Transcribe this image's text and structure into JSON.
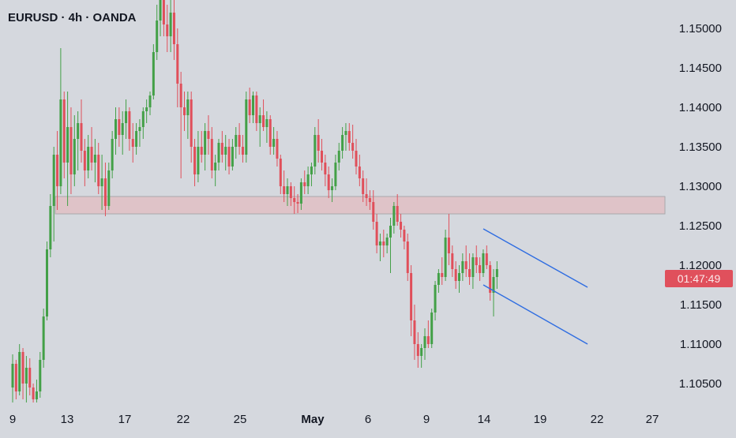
{
  "title": "EURUSD · 4h · OANDA",
  "price_badge": "01:47:49",
  "colors": {
    "background": "#d5d8de",
    "up": "#43a047",
    "down": "#e04f5a",
    "zone_fill": "#dfc3c8",
    "zone_border": "#a8a8ac",
    "channel": "#2f6de1",
    "badge": "#e0505c",
    "text": "#131722"
  },
  "chart_data": {
    "type": "candlestick",
    "symbol": "EURUSD",
    "interval": "4h",
    "source": "OANDA",
    "y_ticks": [
      "1.15000",
      "1.14500",
      "1.14000",
      "1.13500",
      "1.13000",
      "1.12500",
      "1.12000",
      "1.11500",
      "1.11000",
      "1.10500"
    ],
    "x_ticks": [
      "9",
      "13",
      "17",
      "22",
      "25",
      "May",
      "6",
      "9",
      "14",
      "19",
      "22",
      "27"
    ],
    "ylim": [
      1.1025,
      1.1525
    ],
    "grid": false,
    "resistance_zone": [
      1.1265,
      1.1287
    ],
    "channel": {
      "upper": [
        [
          "May 14",
          1.1246
        ],
        [
          "May 21",
          1.1172
        ]
      ],
      "lower": [
        [
          "May 14",
          1.1175
        ],
        [
          "May 21",
          1.11
        ]
      ]
    },
    "candles": [
      [
        1.1045,
        1.1087,
        1.1026,
        1.1075
      ],
      [
        1.1075,
        1.108,
        1.103,
        1.104
      ],
      [
        1.104,
        1.11,
        1.1035,
        1.109
      ],
      [
        1.109,
        1.1095,
        1.103,
        1.105
      ],
      [
        1.105,
        1.1085,
        1.1026,
        1.107
      ],
      [
        1.107,
        1.1082,
        1.1035,
        1.1045
      ],
      [
        1.1045,
        1.105,
        1.1026,
        1.103
      ],
      [
        1.103,
        1.1055,
        1.1026,
        1.104
      ],
      [
        1.104,
        1.109,
        1.1032,
        1.108
      ],
      [
        1.108,
        1.1145,
        1.107,
        1.1135
      ],
      [
        1.1135,
        1.123,
        1.113,
        1.122
      ],
      [
        1.122,
        1.129,
        1.121,
        1.1275
      ],
      [
        1.1275,
        1.135,
        1.123,
        1.134
      ],
      [
        1.134,
        1.137,
        1.127,
        1.13
      ],
      [
        1.13,
        1.1475,
        1.129,
        1.141
      ],
      [
        1.141,
        1.142,
        1.131,
        1.133
      ],
      [
        1.133,
        1.142,
        1.1275,
        1.1375
      ],
      [
        1.1375,
        1.14,
        1.129,
        1.1315
      ],
      [
        1.1315,
        1.139,
        1.13,
        1.136
      ],
      [
        1.136,
        1.1395,
        1.132,
        1.138
      ],
      [
        1.138,
        1.141,
        1.133,
        1.1345
      ],
      [
        1.1345,
        1.136,
        1.13,
        1.132
      ],
      [
        1.132,
        1.1365,
        1.131,
        1.135
      ],
      [
        1.135,
        1.1375,
        1.132,
        1.133
      ],
      [
        1.133,
        1.136,
        1.1305,
        1.134
      ],
      [
        1.134,
        1.1355,
        1.129,
        1.13
      ],
      [
        1.13,
        1.134,
        1.127,
        1.131
      ],
      [
        1.131,
        1.133,
        1.1262,
        1.1275
      ],
      [
        1.1275,
        1.133,
        1.127,
        1.132
      ],
      [
        1.132,
        1.137,
        1.131,
        1.136
      ],
      [
        1.136,
        1.14,
        1.134,
        1.1385
      ],
      [
        1.1385,
        1.14,
        1.135,
        1.1365
      ],
      [
        1.1365,
        1.1395,
        1.134,
        1.138
      ],
      [
        1.138,
        1.141,
        1.136,
        1.1395
      ],
      [
        1.1395,
        1.14,
        1.1345,
        1.136
      ],
      [
        1.136,
        1.138,
        1.133,
        1.135
      ],
      [
        1.135,
        1.138,
        1.134,
        1.137
      ],
      [
        1.137,
        1.1385,
        1.135,
        1.1375
      ],
      [
        1.1375,
        1.14,
        1.136,
        1.1395
      ],
      [
        1.1395,
        1.141,
        1.138,
        1.14
      ],
      [
        1.14,
        1.142,
        1.139,
        1.1415
      ],
      [
        1.1415,
        1.148,
        1.141,
        1.147
      ],
      [
        1.147,
        1.153,
        1.146,
        1.151
      ],
      [
        1.151,
        1.156,
        1.149,
        1.154
      ],
      [
        1.154,
        1.156,
        1.149,
        1.1505
      ],
      [
        1.1505,
        1.153,
        1.147,
        1.149
      ],
      [
        1.149,
        1.156,
        1.147,
        1.152
      ],
      [
        1.152,
        1.154,
        1.146,
        1.148
      ],
      [
        1.148,
        1.15,
        1.14,
        1.143
      ],
      [
        1.143,
        1.1445,
        1.131,
        1.14
      ],
      [
        1.14,
        1.142,
        1.137,
        1.139
      ],
      [
        1.139,
        1.142,
        1.136,
        1.141
      ],
      [
        1.141,
        1.142,
        1.133,
        1.135
      ],
      [
        1.135,
        1.136,
        1.13,
        1.1315
      ],
      [
        1.1315,
        1.137,
        1.1305,
        1.135
      ],
      [
        1.135,
        1.137,
        1.133,
        1.134
      ],
      [
        1.134,
        1.138,
        1.132,
        1.137
      ],
      [
        1.137,
        1.139,
        1.134,
        1.136
      ],
      [
        1.136,
        1.1375,
        1.131,
        1.132
      ],
      [
        1.132,
        1.134,
        1.13,
        1.133
      ],
      [
        1.133,
        1.136,
        1.132,
        1.1355
      ],
      [
        1.1355,
        1.137,
        1.133,
        1.134
      ],
      [
        1.134,
        1.1365,
        1.132,
        1.135
      ],
      [
        1.135,
        1.136,
        1.1315,
        1.1325
      ],
      [
        1.1325,
        1.136,
        1.132,
        1.135
      ],
      [
        1.135,
        1.1375,
        1.1335,
        1.1365
      ],
      [
        1.1365,
        1.138,
        1.134,
        1.135
      ],
      [
        1.135,
        1.1365,
        1.133,
        1.134
      ],
      [
        1.134,
        1.142,
        1.133,
        1.141
      ],
      [
        1.141,
        1.1425,
        1.138,
        1.139
      ],
      [
        1.139,
        1.142,
        1.138,
        1.1415
      ],
      [
        1.1415,
        1.142,
        1.137,
        1.138
      ],
      [
        1.138,
        1.14,
        1.135,
        1.139
      ],
      [
        1.139,
        1.141,
        1.137,
        1.1375
      ],
      [
        1.1375,
        1.1395,
        1.1355,
        1.1385
      ],
      [
        1.1385,
        1.139,
        1.134,
        1.135
      ],
      [
        1.135,
        1.1375,
        1.134,
        1.136
      ],
      [
        1.136,
        1.137,
        1.1325,
        1.1335
      ],
      [
        1.1335,
        1.134,
        1.129,
        1.13
      ],
      [
        1.13,
        1.132,
        1.128,
        1.129
      ],
      [
        1.129,
        1.131,
        1.1275,
        1.13
      ],
      [
        1.13,
        1.1305,
        1.1275,
        1.1285
      ],
      [
        1.1285,
        1.13,
        1.1265,
        1.128
      ],
      [
        1.128,
        1.129,
        1.1266,
        1.1278
      ],
      [
        1.1278,
        1.131,
        1.127,
        1.1305
      ],
      [
        1.1305,
        1.132,
        1.129,
        1.13
      ],
      [
        1.13,
        1.1325,
        1.129,
        1.1315
      ],
      [
        1.1315,
        1.133,
        1.13,
        1.1325
      ],
      [
        1.1325,
        1.1375,
        1.1315,
        1.1365
      ],
      [
        1.1365,
        1.1385,
        1.133,
        1.1345
      ],
      [
        1.1345,
        1.136,
        1.132,
        1.133
      ],
      [
        1.133,
        1.134,
        1.13,
        1.1315
      ],
      [
        1.1315,
        1.1325,
        1.1285,
        1.1295
      ],
      [
        1.1295,
        1.131,
        1.128,
        1.13
      ],
      [
        1.13,
        1.134,
        1.1295,
        1.133
      ],
      [
        1.133,
        1.1355,
        1.132,
        1.1345
      ],
      [
        1.1345,
        1.1375,
        1.1335,
        1.1365
      ],
      [
        1.1365,
        1.138,
        1.1345,
        1.137
      ],
      [
        1.137,
        1.138,
        1.1345,
        1.1355
      ],
      [
        1.1355,
        1.1378,
        1.1335,
        1.1345
      ],
      [
        1.1345,
        1.136,
        1.1315,
        1.1325
      ],
      [
        1.1325,
        1.134,
        1.13,
        1.131
      ],
      [
        1.131,
        1.132,
        1.128,
        1.129
      ],
      [
        1.129,
        1.131,
        1.1275,
        1.1285
      ],
      [
        1.1285,
        1.1295,
        1.127,
        1.128
      ],
      [
        1.128,
        1.1295,
        1.1245,
        1.1255
      ],
      [
        1.1255,
        1.1265,
        1.1215,
        1.1225
      ],
      [
        1.1225,
        1.124,
        1.1205,
        1.123
      ],
      [
        1.123,
        1.1245,
        1.121,
        1.1225
      ],
      [
        1.1225,
        1.124,
        1.1215,
        1.1235
      ],
      [
        1.1235,
        1.126,
        1.119,
        1.125
      ],
      [
        1.125,
        1.128,
        1.124,
        1.1275
      ],
      [
        1.1275,
        1.129,
        1.125,
        1.1255
      ],
      [
        1.1255,
        1.1265,
        1.1235,
        1.1245
      ],
      [
        1.1245,
        1.125,
        1.122,
        1.123
      ],
      [
        1.123,
        1.124,
        1.118,
        1.119
      ],
      [
        1.119,
        1.12,
        1.111,
        1.113
      ],
      [
        1.113,
        1.115,
        1.108,
        1.11
      ],
      [
        1.11,
        1.1115,
        1.107,
        1.1085
      ],
      [
        1.1085,
        1.11,
        1.107,
        1.1095
      ],
      [
        1.1095,
        1.112,
        1.108,
        1.111
      ],
      [
        1.111,
        1.113,
        1.1095,
        1.11
      ],
      [
        1.11,
        1.1145,
        1.1095,
        1.114
      ],
      [
        1.114,
        1.118,
        1.113,
        1.1175
      ],
      [
        1.1175,
        1.1195,
        1.1165,
        1.119
      ],
      [
        1.119,
        1.121,
        1.1175,
        1.1185
      ],
      [
        1.1185,
        1.1245,
        1.118,
        1.1235
      ],
      [
        1.1235,
        1.1265,
        1.12,
        1.1215
      ],
      [
        1.1215,
        1.1225,
        1.1185,
        1.1195
      ],
      [
        1.1195,
        1.1205,
        1.117,
        1.118
      ],
      [
        1.118,
        1.12,
        1.1165,
        1.119
      ],
      [
        1.119,
        1.1215,
        1.118,
        1.1205
      ],
      [
        1.1205,
        1.1225,
        1.1185,
        1.1195
      ],
      [
        1.1195,
        1.1215,
        1.1175,
        1.1185
      ],
      [
        1.1185,
        1.1215,
        1.117,
        1.121
      ],
      [
        1.121,
        1.1225,
        1.119,
        1.12
      ],
      [
        1.12,
        1.121,
        1.118,
        1.119
      ],
      [
        1.119,
        1.122,
        1.1185,
        1.1215
      ],
      [
        1.1215,
        1.1225,
        1.1195,
        1.12
      ],
      [
        1.12,
        1.1205,
        1.1155,
        1.1165
      ],
      [
        1.1165,
        1.1195,
        1.1135,
        1.1185
      ],
      [
        1.1185,
        1.1205,
        1.117,
        1.1195
      ]
    ]
  }
}
